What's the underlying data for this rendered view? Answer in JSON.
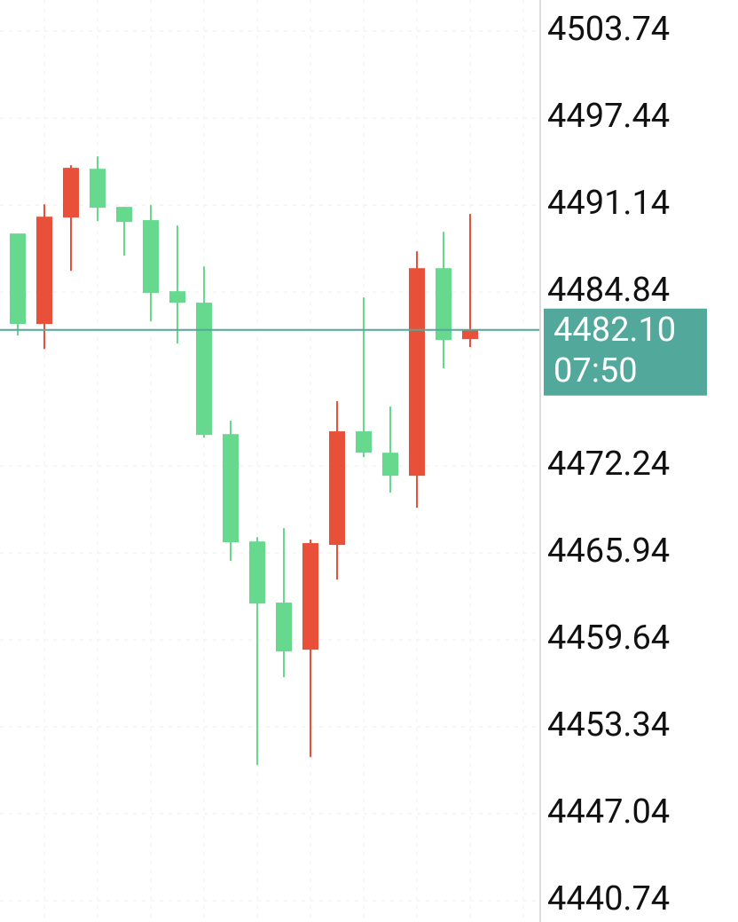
{
  "chart_data": {
    "type": "candlestick",
    "ylim": [
      4439.2,
      4506.0
    ],
    "yticks": [
      4503.74,
      4497.44,
      4491.14,
      4484.84,
      4472.24,
      4465.94,
      4459.64,
      4453.34,
      4447.04,
      4440.74
    ],
    "grid": true,
    "up_color": "#66d98e",
    "down_color": "#e8503a",
    "open": [
      4482.53,
      4490.3,
      4493.84,
      4490.95,
      4489.92,
      4484.77,
      4484.07,
      4474.49,
      4466.71,
      4462.27,
      4458.8,
      4466.65,
      4474.75,
      4473.2,
      4471.53,
      4486.57,
      4481.37,
      4482.07
    ],
    "high": [
      4489.08,
      4491.2,
      4494.03,
      4494.67,
      4491.01,
      4491.14,
      4489.66,
      4486.7,
      4475.52,
      4467.09,
      4467.74,
      4466.9,
      4476.93,
      4484.45,
      4476.55,
      4487.8,
      4489.21,
      4490.5
    ],
    "low": [
      4481.69,
      4480.72,
      4486.38,
      4489.98,
      4487.47,
      4482.72,
      4481.11,
      4474.3,
      4465.36,
      4450.57,
      4456.94,
      4451.15,
      4464.01,
      4472.88,
      4470.31,
      4469.22,
      4479.31,
      4480.85
    ],
    "close": [
      4489.08,
      4482.53,
      4490.24,
      4493.77,
      4491.01,
      4490.05,
      4484.9,
      4484.07,
      4474.55,
      4466.77,
      4462.34,
      4458.93,
      4466.52,
      4474.75,
      4473.2,
      4471.53,
      4486.57,
      4481.43
    ],
    "current_price": {
      "value": 4482.1,
      "label": "4482.10"
    },
    "current_time": "07:50",
    "current_color": "#52a89a"
  }
}
